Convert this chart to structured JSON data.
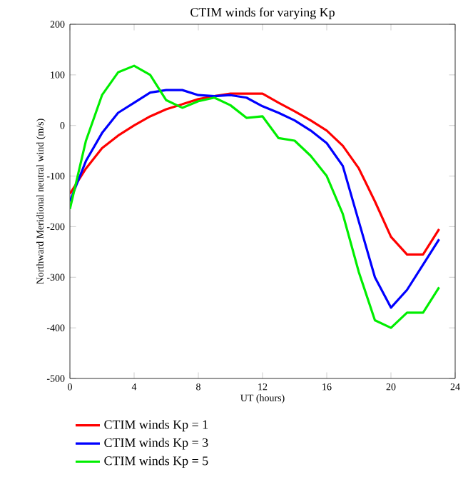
{
  "chart_data": {
    "type": "line",
    "title": "CTIM winds for varying Kp",
    "xlabel": "UT (hours)",
    "ylabel": "Northward Meridional neutral wind (m/s)",
    "x": [
      0,
      1,
      2,
      3,
      4,
      5,
      6,
      7,
      8,
      9,
      10,
      11,
      12,
      13,
      14,
      15,
      16,
      17,
      18,
      19,
      20,
      21,
      22,
      23
    ],
    "series": [
      {
        "name": "CTIM winds Kp = 1",
        "color": "#ff0000",
        "values": [
          -135,
          -85,
          -45,
          -20,
          0,
          18,
          32,
          42,
          52,
          58,
          63,
          63,
          63,
          45,
          28,
          10,
          -10,
          -40,
          -85,
          -150,
          -220,
          -255,
          -255,
          -205
        ]
      },
      {
        "name": "CTIM winds Kp = 3",
        "color": "#0000ff",
        "values": [
          -150,
          -70,
          -15,
          25,
          45,
          65,
          70,
          70,
          60,
          58,
          60,
          55,
          38,
          25,
          10,
          -10,
          -35,
          -80,
          -190,
          -300,
          -360,
          -325,
          -275,
          -225
        ]
      },
      {
        "name": "CTIM winds Kp = 5",
        "color": "#00ee00",
        "values": [
          -165,
          -30,
          60,
          105,
          118,
          100,
          50,
          35,
          48,
          55,
          40,
          15,
          18,
          -25,
          -30,
          -60,
          -100,
          -175,
          -290,
          -385,
          -400,
          -370,
          -370,
          -320
        ]
      }
    ],
    "xlim": [
      0,
      24
    ],
    "xticks": [
      0,
      4,
      8,
      12,
      16,
      20,
      24
    ],
    "ylim": [
      -500,
      200
    ],
    "yticks": [
      -500,
      -400,
      -300,
      -200,
      -100,
      0,
      100,
      200
    ],
    "grid": false,
    "legend": "bottom",
    "marker": "none",
    "line_style": "solid"
  }
}
